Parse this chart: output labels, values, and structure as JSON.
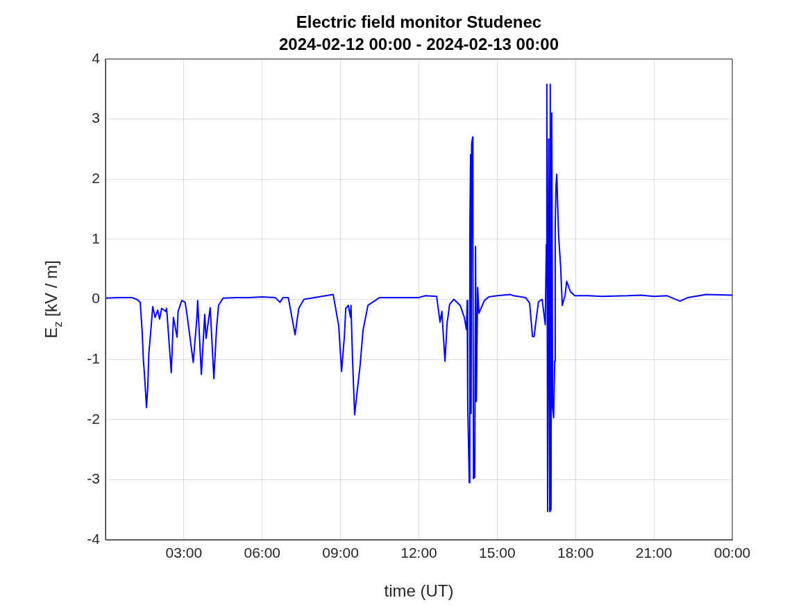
{
  "chart_data": {
    "type": "line",
    "title": "Electric field monitor Studenec",
    "subtitle": "2024-02-12 00:00 - 2024-02-13 00:00",
    "xlabel": "time (UT)",
    "ylabel": "E$_{z}$ [kV / m]",
    "xlim": [
      0,
      24
    ],
    "xticks": [
      {
        "value": 0,
        "label": null
      },
      {
        "value": 3,
        "label": "03:00"
      },
      {
        "value": 6,
        "label": "06:00"
      },
      {
        "value": 9,
        "label": "09:00"
      },
      {
        "value": 12,
        "label": "12:00"
      },
      {
        "value": 15,
        "label": "15:00"
      },
      {
        "value": 18,
        "label": "18:00"
      },
      {
        "value": 21,
        "label": "21:00"
      },
      {
        "value": 24,
        "label": "00:00"
      }
    ],
    "ylim": [
      -4,
      4
    ],
    "yticks": [
      -4,
      -3,
      -2,
      -1,
      0,
      1,
      2,
      3,
      4
    ],
    "grid": true,
    "marker": "none",
    "line_style": "solid",
    "series": [
      {
        "color": "#0000ff",
        "x": [
          0,
          0.5,
          1.0,
          1.2,
          1.33,
          1.4,
          1.45,
          1.5,
          1.57,
          1.62,
          1.66,
          1.72,
          1.81,
          1.9,
          2.0,
          2.07,
          2.15,
          2.3,
          2.34,
          2.52,
          2.6,
          2.74,
          2.78,
          2.92,
          3.05,
          3.12,
          3.36,
          3.5,
          3.53,
          3.67,
          3.8,
          3.85,
          4.01,
          4.15,
          4.25,
          4.33,
          4.5,
          5.0,
          5.5,
          6.0,
          6.5,
          6.68,
          6.8,
          7.0,
          7.26,
          7.4,
          7.6,
          8.0,
          8.72,
          8.93,
          9.04,
          9.15,
          9.2,
          9.3,
          9.38,
          9.4,
          9.46,
          9.54,
          9.62,
          9.75,
          9.86,
          10.05,
          10.5,
          11.0,
          12.0,
          12.25,
          12.68,
          12.81,
          12.88,
          13.0,
          13.08,
          13.18,
          13.34,
          13.58,
          13.74,
          13.82,
          13.85,
          13.87,
          13.93,
          13.95,
          13.98,
          14.0,
          14.02,
          14.06,
          14.07,
          14.09,
          14.14,
          14.17,
          14.2,
          14.25,
          14.3,
          14.51,
          14.67,
          15.0,
          15.5,
          15.63,
          16.08,
          16.24,
          16.35,
          16.41,
          16.58,
          16.72,
          16.84,
          16.88,
          16.9,
          16.93,
          16.97,
          17.01,
          17.03,
          17.06,
          17.09,
          17.12,
          17.16,
          17.2,
          17.22,
          17.25,
          17.28,
          17.35,
          17.43,
          17.49,
          17.6,
          17.66,
          17.8,
          17.97,
          18.5,
          19.0,
          20.0,
          20.5,
          21.0,
          21.5,
          22.0,
          22.3,
          23.0,
          24.0
        ],
        "values": [
          0.02,
          0.03,
          0.03,
          0.0,
          -0.05,
          -0.5,
          -1.0,
          -1.3,
          -1.8,
          -1.45,
          -0.9,
          -0.6,
          -0.12,
          -0.3,
          -0.18,
          -0.33,
          -0.15,
          -0.2,
          -0.15,
          -1.22,
          -0.3,
          -0.63,
          -0.2,
          -0.02,
          -0.05,
          -0.25,
          -1.05,
          -0.3,
          -0.02,
          -1.25,
          -0.25,
          -0.65,
          -0.14,
          -1.32,
          -0.5,
          -0.1,
          0.02,
          0.03,
          0.03,
          0.04,
          0.03,
          -0.05,
          0.03,
          0.03,
          -0.59,
          -0.15,
          0.0,
          0.03,
          0.08,
          -0.44,
          -1.2,
          -0.6,
          -0.15,
          -0.1,
          -0.3,
          -0.1,
          -1.0,
          -1.92,
          -1.6,
          -1.1,
          -0.52,
          -0.1,
          0.03,
          0.03,
          0.03,
          0.06,
          0.05,
          -0.38,
          -0.2,
          -1.03,
          -0.4,
          -0.08,
          0.0,
          -0.1,
          -0.3,
          -0.5,
          -0.02,
          -1.72,
          -3.05,
          1.04,
          2.41,
          -1.9,
          2.59,
          2.7,
          0.9,
          -2.98,
          -2.96,
          0.88,
          -1.7,
          0.2,
          -0.23,
          -0.02,
          0.04,
          0.06,
          0.08,
          0.06,
          0.03,
          -0.06,
          -0.62,
          -0.62,
          -0.04,
          0.0,
          -0.42,
          0.91,
          3.58,
          -3.53,
          2.67,
          -3.53,
          3.58,
          -3.5,
          3.1,
          -1.8,
          -1.97,
          -1.03,
          1.16,
          1.89,
          2.08,
          1.07,
          0.53,
          -0.1,
          0.07,
          0.3,
          0.13,
          0.06,
          0.06,
          0.05,
          0.06,
          0.07,
          0.05,
          0.06,
          -0.03,
          0.03,
          0.08,
          0.07
        ]
      }
    ]
  }
}
